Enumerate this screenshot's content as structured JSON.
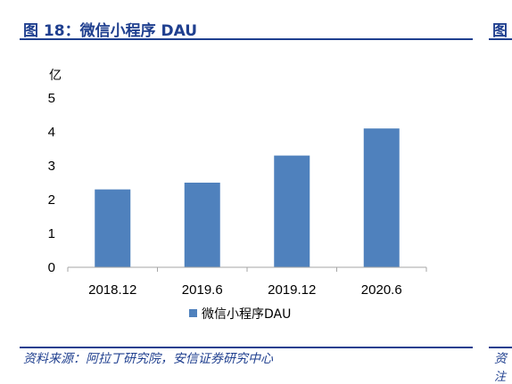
{
  "figure": {
    "title": "图 18：微信小程序 DAU",
    "title_right_partial": "图",
    "source": "资料来源：阿拉丁研究院，安信证券研究中心",
    "source_right_partial": "资",
    "note_right_partial": "注"
  },
  "colors": {
    "accent": "#1f3f8f",
    "bar": "#4f81bd"
  },
  "chart_data": {
    "type": "bar",
    "title": "",
    "xlabel": "",
    "ylabel": "亿",
    "categories": [
      "2018.12",
      "2019.6",
      "2019.12",
      "2020.6"
    ],
    "series": [
      {
        "name": "微信小程序DAU",
        "values": [
          2.3,
          2.5,
          3.3,
          4.1
        ]
      }
    ],
    "ylim": [
      0,
      5
    ],
    "yticks": [
      "0",
      "1",
      "2",
      "3",
      "4",
      "5"
    ],
    "grid": false,
    "legend": "bottom-center"
  }
}
